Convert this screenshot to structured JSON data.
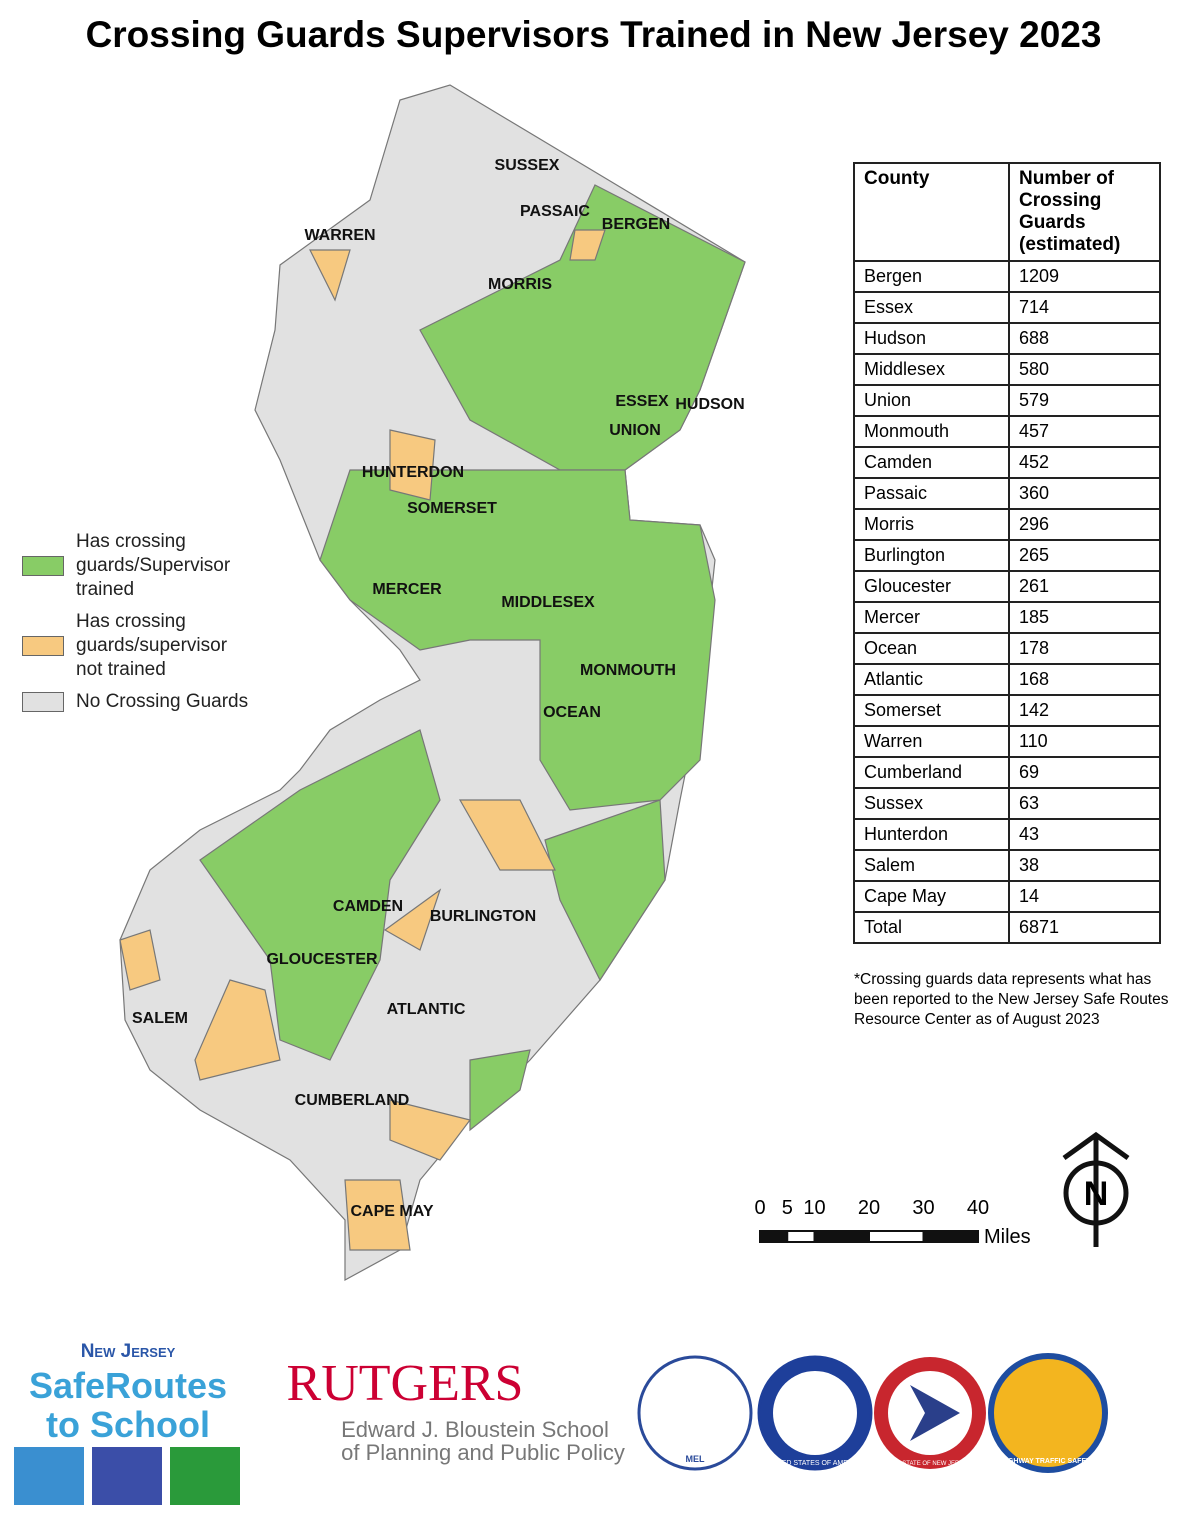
{
  "title": "Crossing Guards Supervisors Trained in New Jersey 2023",
  "legend": [
    {
      "label": "Has crossing guards/Supervisor trained",
      "color": "#88cc66"
    },
    {
      "label": "Has crossing guards/supervisor not trained",
      "color": "#f7c980"
    },
    {
      "label": "No Crossing Guards",
      "color": "#e1e1e1"
    }
  ],
  "map_labels": [
    "SUSSEX",
    "PASSAIC",
    "BERGEN",
    "WARREN",
    "MORRIS",
    "ESSEX",
    "HUDSON",
    "UNION",
    "HUNTERDON",
    "SOMERSET",
    "MERCER",
    "MIDDLESEX",
    "MONMOUTH",
    "OCEAN",
    "CAMDEN",
    "BURLINGTON",
    "GLOUCESTER",
    "SALEM",
    "ATLANTIC",
    "CUMBERLAND",
    "CAPE MAY"
  ],
  "table": {
    "header": [
      "County",
      "Number of Crossing Guards (estimated)"
    ],
    "rows": [
      [
        "Bergen",
        1209
      ],
      [
        "Essex",
        714
      ],
      [
        "Hudson",
        688
      ],
      [
        "Middlesex",
        580
      ],
      [
        "Union",
        579
      ],
      [
        "Monmouth",
        457
      ],
      [
        "Camden",
        452
      ],
      [
        "Passaic",
        360
      ],
      [
        "Morris",
        296
      ],
      [
        "Burlington",
        265
      ],
      [
        "Gloucester",
        261
      ],
      [
        "Mercer",
        185
      ],
      [
        "Ocean",
        178
      ],
      [
        "Atlantic",
        168
      ],
      [
        "Somerset",
        142
      ],
      [
        "Warren",
        110
      ],
      [
        "Cumberland",
        69
      ],
      [
        "Sussex",
        63
      ],
      [
        "Hunterdon",
        43
      ],
      [
        "Salem",
        38
      ],
      [
        "Cape May",
        14
      ],
      [
        "Total",
        6871
      ]
    ]
  },
  "note": "*Crossing guards data represents what has been reported to the New Jersey Safe Routes Resource Center as of August 2023",
  "scale": {
    "ticks": [
      0,
      5,
      10,
      20,
      30,
      40
    ],
    "unit": "Miles"
  },
  "north": "N",
  "logos": {
    "srts_state": "New Jersey",
    "srts_line1": "SafeRoutes",
    "srts_line2": "to School",
    "rutgers": "RUTGERS",
    "rutgers_school1": "Edward J. Bloustein School",
    "rutgers_school2": "of Planning and Public Policy",
    "seal1": "MEL",
    "seal2": "UNITED STATES OF AMERICA",
    "seal3": "THE STATE OF NEW JERSEY",
    "seal4": "HIGHWAY TRAFFIC SAFETY"
  }
}
